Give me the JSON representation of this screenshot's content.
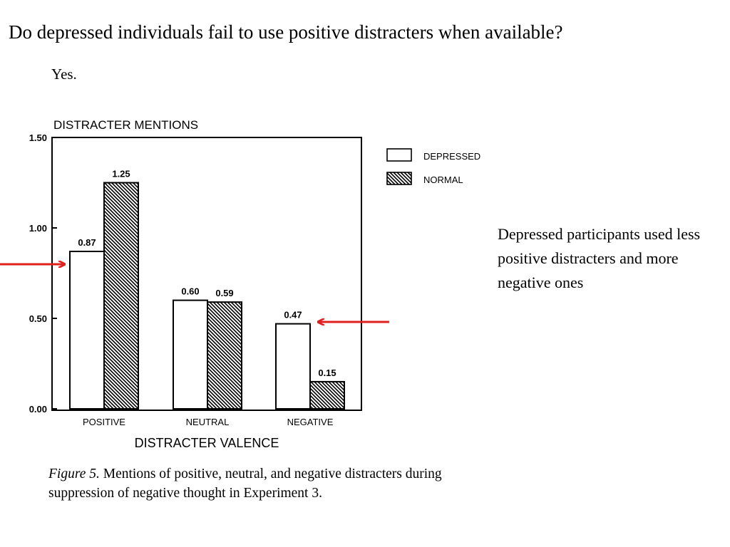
{
  "slide": {
    "title": "Do depressed individuals fail to use positive distracters when available?",
    "answer": "Yes.",
    "note": "Depressed participants used less positive distracters and more negative ones"
  },
  "caption": {
    "label": "Figure 5.",
    "text": " Mentions of positive, neutral, and negative distracters during suppression of negative thought in Experiment 3."
  },
  "chart_data": {
    "type": "bar",
    "ylabel": "DISTRACTER MENTIONS",
    "xlabel": "DISTRACTER VALENCE",
    "categories": [
      "POSITIVE",
      "NEUTRAL",
      "NEGATIVE"
    ],
    "series": [
      {
        "name": "DEPRESSED",
        "values": [
          0.87,
          0.6,
          0.47
        ],
        "labels": [
          "0.87",
          "0.60",
          "0.47"
        ],
        "fill": "white"
      },
      {
        "name": "NORMAL",
        "values": [
          1.25,
          0.59,
          0.15
        ],
        "labels": [
          "1.25",
          "0.59",
          "0.15"
        ],
        "fill": "hatched"
      }
    ],
    "yticks": [
      "0.00",
      "0.50",
      "1.00",
      "1.50"
    ],
    "ylim": [
      0,
      1.5
    ],
    "grid": false,
    "legend": "right",
    "annotations": [
      {
        "type": "arrow",
        "target": "POSITIVE / DEPRESSED",
        "color": "#e0201e"
      },
      {
        "type": "arrow",
        "target": "NEGATIVE / DEPRESSED",
        "color": "#e0201e"
      }
    ]
  }
}
